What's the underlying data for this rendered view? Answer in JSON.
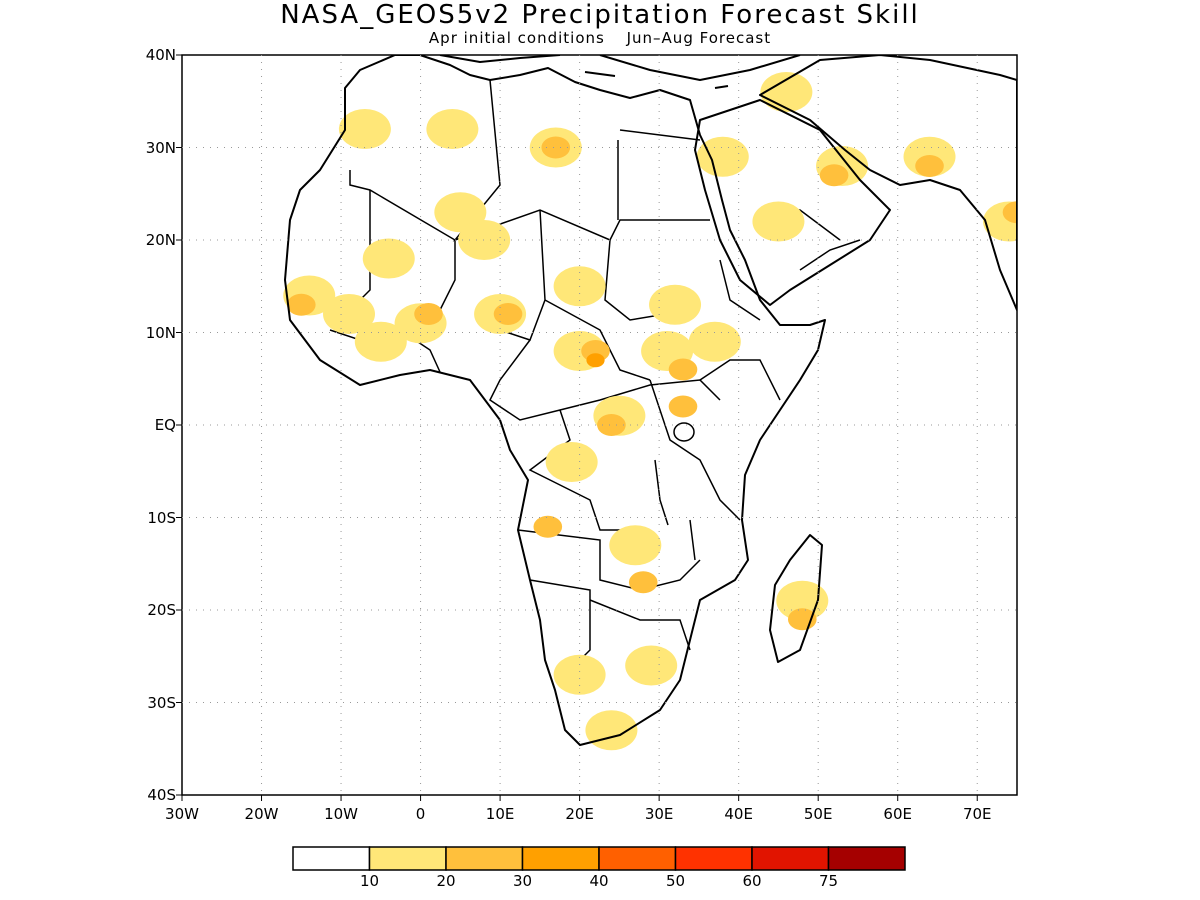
{
  "title": "NASA_GEOS5v2 Precipitation Forecast Skill",
  "subtitle": {
    "initial": "Apr initial conditions",
    "forecast": "Jun–Aug Forecast"
  },
  "axes": {
    "lat_labels": [
      "40N",
      "30N",
      "20N",
      "10N",
      "EQ",
      "10S",
      "20S",
      "30S",
      "40S"
    ],
    "lon_labels": [
      "30W",
      "20W",
      "10W",
      "0",
      "10E",
      "20E",
      "30E",
      "40E",
      "50E",
      "60E",
      "70E"
    ],
    "lon_range": [
      -30,
      75
    ],
    "lat_range": [
      -40,
      40
    ],
    "grid": "dotted"
  },
  "colorbar": {
    "colors": [
      "#ffffff",
      "#ffe778",
      "#ffc03c",
      "#ffa000",
      "#ff6000",
      "#ff3200",
      "#e11400",
      "#a50000"
    ],
    "labels": [
      "10",
      "20",
      "30",
      "40",
      "50",
      "60",
      "75"
    ]
  },
  "skill_regions": [
    {
      "lon": 17,
      "lat": 30,
      "level": 1
    },
    {
      "lon": 17,
      "lat": 30,
      "level": 2
    },
    {
      "lon": 4,
      "lat": 32,
      "level": 1
    },
    {
      "lon": -7,
      "lat": 32,
      "level": 1
    },
    {
      "lon": 5,
      "lat": 23,
      "level": 1
    },
    {
      "lon": 8,
      "lat": 20,
      "level": 1
    },
    {
      "lon": -4,
      "lat": 18,
      "level": 1
    },
    {
      "lon": -14,
      "lat": 14,
      "level": 1
    },
    {
      "lon": -15,
      "lat": 13,
      "level": 2
    },
    {
      "lon": -9,
      "lat": 12,
      "level": 1
    },
    {
      "lon": -5,
      "lat": 9,
      "level": 1
    },
    {
      "lon": 0,
      "lat": 11,
      "level": 1
    },
    {
      "lon": 1,
      "lat": 12,
      "level": 2
    },
    {
      "lon": 10,
      "lat": 12,
      "level": 1
    },
    {
      "lon": 11,
      "lat": 12,
      "level": 2
    },
    {
      "lon": 20,
      "lat": 15,
      "level": 1
    },
    {
      "lon": 20,
      "lat": 8,
      "level": 1
    },
    {
      "lon": 22,
      "lat": 8,
      "level": 2
    },
    {
      "lon": 22,
      "lat": 7,
      "level": 3
    },
    {
      "lon": 31,
      "lat": 8,
      "level": 1
    },
    {
      "lon": 33,
      "lat": 6,
      "level": 2
    },
    {
      "lon": 33,
      "lat": 2,
      "level": 2
    },
    {
      "lon": 32,
      "lat": 13,
      "level": 1
    },
    {
      "lon": 37,
      "lat": 9,
      "level": 1
    },
    {
      "lon": 25,
      "lat": 1,
      "level": 1
    },
    {
      "lon": 24,
      "lat": 0,
      "level": 2
    },
    {
      "lon": 19,
      "lat": -4,
      "level": 1
    },
    {
      "lon": 16,
      "lat": -11,
      "level": 2
    },
    {
      "lon": 27,
      "lat": -13,
      "level": 1
    },
    {
      "lon": 28,
      "lat": -17,
      "level": 2
    },
    {
      "lon": 48,
      "lat": -19,
      "level": 1
    },
    {
      "lon": 48,
      "lat": -21,
      "level": 2
    },
    {
      "lon": 20,
      "lat": -27,
      "level": 1
    },
    {
      "lon": 24,
      "lat": -33,
      "level": 1
    },
    {
      "lon": 29,
      "lat": -26,
      "level": 1
    },
    {
      "lon": 45,
      "lat": 22,
      "level": 1
    },
    {
      "lon": 38,
      "lat": 29,
      "level": 1
    },
    {
      "lon": 53,
      "lat": 28,
      "level": 1
    },
    {
      "lon": 52,
      "lat": 27,
      "level": 2
    },
    {
      "lon": 64,
      "lat": 29,
      "level": 1
    },
    {
      "lon": 64,
      "lat": 28,
      "level": 2
    },
    {
      "lon": 74,
      "lat": 22,
      "level": 1
    },
    {
      "lon": 75,
      "lat": 23,
      "level": 2
    },
    {
      "lon": 46,
      "lat": 36,
      "level": 1
    }
  ]
}
